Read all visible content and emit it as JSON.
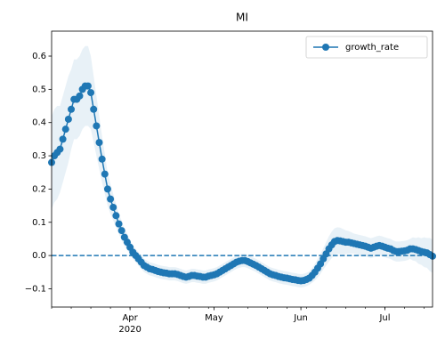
{
  "chart_data": {
    "type": "line",
    "title": "MI",
    "categories": [
      null,
      null,
      null,
      null,
      null,
      null,
      null,
      null,
      null,
      null,
      null,
      null,
      null,
      null,
      null,
      null,
      null,
      null,
      null,
      null,
      null,
      null,
      null,
      null,
      null,
      null,
      null,
      null,
      "Apr",
      null,
      null,
      null,
      null,
      null,
      null,
      null,
      null,
      null,
      null,
      null,
      null,
      null,
      null,
      null,
      null,
      null,
      null,
      null,
      null,
      null,
      null,
      null,
      null,
      null,
      null,
      null,
      null,
      null,
      "May",
      null,
      null,
      null,
      null,
      null,
      null,
      null,
      null,
      null,
      null,
      null,
      null,
      null,
      null,
      null,
      null,
      null,
      null,
      null,
      null,
      null,
      null,
      null,
      null,
      null,
      null,
      null,
      null,
      null,
      null,
      "Jun",
      null,
      null,
      null,
      null,
      null,
      null,
      null,
      null,
      null,
      null,
      null,
      null,
      null,
      null,
      null,
      null,
      null,
      null,
      null,
      null,
      null,
      null,
      null,
      null,
      null,
      null,
      null,
      null,
      null,
      "Jul",
      null,
      null,
      null,
      null,
      null,
      null,
      null,
      null,
      null,
      null,
      null,
      null,
      null,
      null,
      null,
      null,
      null
    ],
    "x_year_label": "2020",
    "series": [
      {
        "name": "growth_rate",
        "color": "#1f77b4",
        "values": [
          0.28,
          0.3,
          0.31,
          0.32,
          0.35,
          0.38,
          0.41,
          0.44,
          0.47,
          0.47,
          0.48,
          0.5,
          0.51,
          0.51,
          0.49,
          0.44,
          0.39,
          0.34,
          0.29,
          0.245,
          0.2,
          0.17,
          0.145,
          0.12,
          0.095,
          0.075,
          0.055,
          0.04,
          0.025,
          0.01,
          0.0,
          -0.01,
          -0.02,
          -0.03,
          -0.035,
          -0.04,
          -0.042,
          -0.045,
          -0.048,
          -0.05,
          -0.052,
          -0.053,
          -0.055,
          -0.055,
          -0.055,
          -0.057,
          -0.06,
          -0.063,
          -0.065,
          -0.063,
          -0.06,
          -0.06,
          -0.062,
          -0.063,
          -0.065,
          -0.065,
          -0.062,
          -0.06,
          -0.058,
          -0.055,
          -0.05,
          -0.045,
          -0.04,
          -0.035,
          -0.03,
          -0.025,
          -0.02,
          -0.017,
          -0.015,
          -0.015,
          -0.018,
          -0.022,
          -0.026,
          -0.03,
          -0.035,
          -0.04,
          -0.045,
          -0.05,
          -0.055,
          -0.058,
          -0.06,
          -0.063,
          -0.065,
          -0.067,
          -0.068,
          -0.07,
          -0.072,
          -0.073,
          -0.075,
          -0.076,
          -0.075,
          -0.072,
          -0.068,
          -0.06,
          -0.05,
          -0.038,
          -0.025,
          -0.01,
          0.005,
          0.02,
          0.032,
          0.042,
          0.045,
          0.044,
          0.042,
          0.04,
          0.04,
          0.038,
          0.036,
          0.034,
          0.032,
          0.03,
          0.028,
          0.025,
          0.022,
          0.025,
          0.028,
          0.03,
          0.028,
          0.025,
          0.022,
          0.02,
          0.015,
          0.012,
          0.012,
          0.013,
          0.014,
          0.016,
          0.02,
          0.02,
          0.018,
          0.015,
          0.012,
          0.01,
          0.008,
          0.003,
          -0.002
        ],
        "errors": [
          0.14,
          0.14,
          0.14,
          0.13,
          0.13,
          0.13,
          0.13,
          0.12,
          0.12,
          0.12,
          0.12,
          0.12,
          0.12,
          0.12,
          0.11,
          0.1,
          0.09,
          0.08,
          0.07,
          0.06,
          0.05,
          0.045,
          0.04,
          0.035,
          0.03,
          0.03,
          0.025,
          0.025,
          0.02,
          0.02,
          0.02,
          0.02,
          0.02,
          0.02,
          0.02,
          0.02,
          0.02,
          0.02,
          0.02,
          0.02,
          0.02,
          0.02,
          0.02,
          0.02,
          0.02,
          0.02,
          0.02,
          0.02,
          0.02,
          0.02,
          0.02,
          0.02,
          0.02,
          0.02,
          0.02,
          0.02,
          0.02,
          0.02,
          0.02,
          0.02,
          0.02,
          0.02,
          0.02,
          0.02,
          0.02,
          0.02,
          0.02,
          0.02,
          0.02,
          0.02,
          0.02,
          0.02,
          0.02,
          0.02,
          0.02,
          0.02,
          0.02,
          0.02,
          0.02,
          0.02,
          0.02,
          0.02,
          0.02,
          0.02,
          0.02,
          0.02,
          0.02,
          0.02,
          0.02,
          0.02,
          0.02,
          0.02,
          0.02,
          0.022,
          0.025,
          0.028,
          0.03,
          0.032,
          0.035,
          0.038,
          0.04,
          0.04,
          0.04,
          0.04,
          0.038,
          0.036,
          0.034,
          0.032,
          0.03,
          0.03,
          0.03,
          0.03,
          0.03,
          0.03,
          0.03,
          0.03,
          0.03,
          0.03,
          0.03,
          0.03,
          0.03,
          0.03,
          0.03,
          0.03,
          0.03,
          0.03,
          0.03,
          0.03,
          0.03,
          0.035,
          0.035,
          0.04,
          0.04,
          0.045,
          0.045,
          0.05,
          0.05
        ]
      }
    ],
    "ylim": [
      -0.155,
      0.675
    ],
    "yticks": [
      {
        "value": -0.1,
        "label": "−0.1"
      },
      {
        "value": 0,
        "label": "0.0"
      },
      0.1,
      0.2,
      0.3,
      0.4,
      0.5,
      0.6
    ],
    "hline": 0,
    "legend": "upper right"
  }
}
